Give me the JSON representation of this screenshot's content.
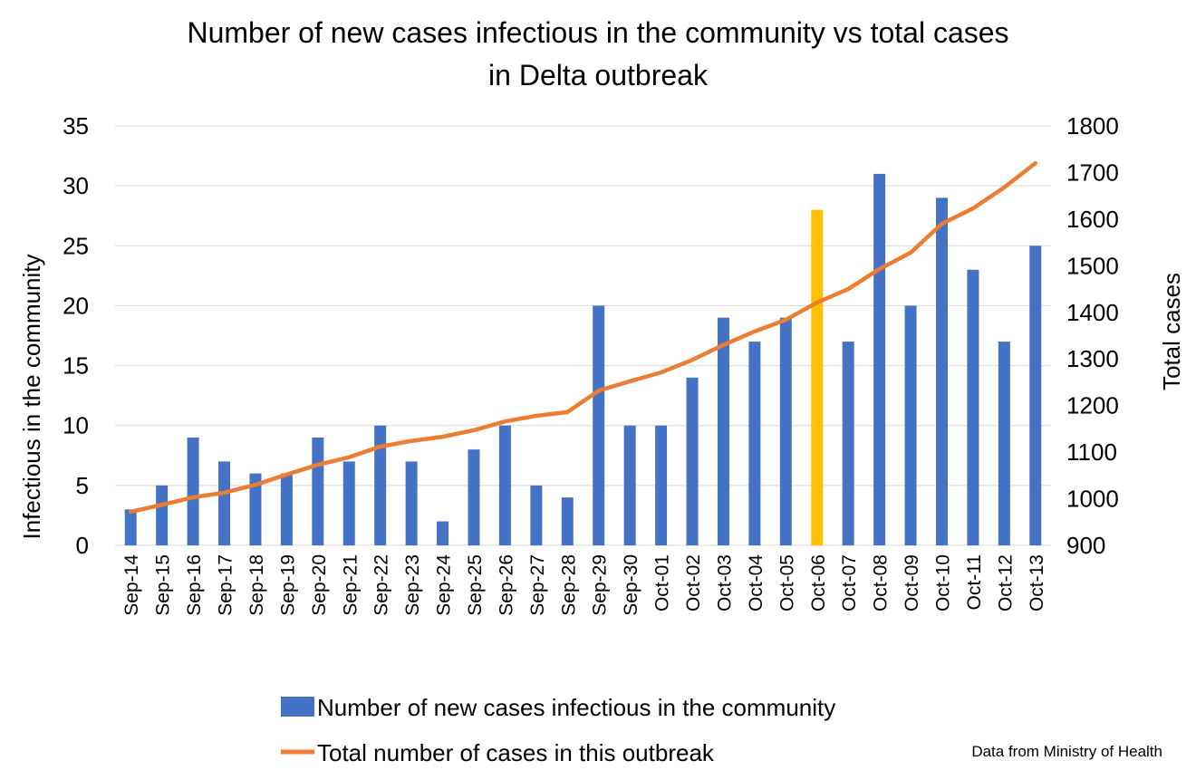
{
  "chart_data": {
    "type": "bar+line",
    "title_line1": "Number of new cases infectious in the community vs total cases",
    "title_line2": "in Delta outbreak",
    "ylabel_left": "Infectious in the community",
    "ylabel_right": "Total cases",
    "ylim_left": [
      0,
      35
    ],
    "ylim_right": [
      900,
      1800
    ],
    "yticks_left": [
      "0",
      "5",
      "10",
      "15",
      "20",
      "25",
      "30",
      "35"
    ],
    "yticks_right": [
      "900",
      "1000",
      "1100",
      "1200",
      "1300",
      "1400",
      "1500",
      "1600",
      "1700",
      "1800"
    ],
    "grid": true,
    "legend_position": "bottom",
    "categories": [
      "Sep-14",
      "Sep-15",
      "Sep-16",
      "Sep-17",
      "Sep-18",
      "Sep-19",
      "Sep-20",
      "Sep-21",
      "Sep-22",
      "Sep-23",
      "Sep-24",
      "Sep-25",
      "Sep-26",
      "Sep-27",
      "Sep-28",
      "Sep-29",
      "Sep-30",
      "Oct-01",
      "Oct-02",
      "Oct-03",
      "Oct-04",
      "Oct-05",
      "Oct-06",
      "Oct-07",
      "Oct-08",
      "Oct-09",
      "Oct-10",
      "Oct-11",
      "Oct-12",
      "Oct-13"
    ],
    "series": [
      {
        "name": "Number of new cases infectious in the community",
        "type": "bar",
        "axis": "left",
        "color": "#4472C4",
        "highlight_color": "#FFC000",
        "highlight_category": "Oct-06",
        "values": [
          3,
          5,
          9,
          7,
          6,
          6,
          9,
          7,
          10,
          7,
          2,
          8,
          10,
          5,
          4,
          20,
          10,
          10,
          14,
          19,
          17,
          19,
          28,
          17,
          31,
          20,
          29,
          23,
          17,
          25
        ]
      },
      {
        "name": "Total number of cases in this outbreak",
        "type": "line",
        "axis": "right",
        "color": "#ED7D31",
        "values": [
          972,
          987,
          1003,
          1013,
          1030,
          1052,
          1073,
          1089,
          1112,
          1124,
          1133,
          1147,
          1166,
          1178,
          1186,
          1232,
          1252,
          1271,
          1298,
          1330,
          1359,
          1384,
          1421,
          1450,
          1493,
          1528,
          1590,
          1623,
          1668,
          1720
        ]
      }
    ],
    "source_note": "Data from Ministry of Health"
  }
}
